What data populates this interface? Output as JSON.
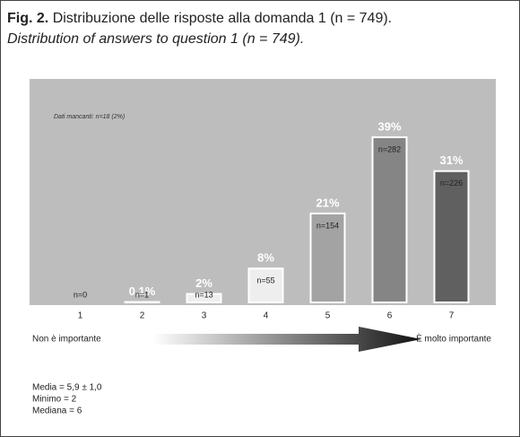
{
  "caption": {
    "label": "Fig. 2.",
    "text": "Distribuzione delle risposte alla domanda 1 (n = 749).",
    "english": "Distribution of answers to question 1 (n = 749)."
  },
  "chart_data": {
    "type": "bar",
    "annotation": "Dati mancanti: n=18 (2%)",
    "categories": [
      "1",
      "2",
      "3",
      "4",
      "5",
      "6",
      "7"
    ],
    "values": [
      0,
      0.1,
      2,
      8,
      21,
      39,
      31
    ],
    "value_labels": [
      null,
      "0,1%",
      "2%",
      "8%",
      "21%",
      "39%",
      "31%"
    ],
    "n_labels": [
      "n=0",
      "n=1",
      "n=13",
      "n=55",
      "n=154",
      "n=282",
      "n=226"
    ],
    "colors": [
      "#eeeeee",
      "#eeeeee",
      "#eeeeee",
      "#eeeeee",
      "#a3a3a3",
      "#858585",
      "#606060"
    ],
    "scale_left": "Non è importante",
    "scale_right": "È molto importante"
  },
  "stats": [
    "Media = 5,9 ± 1,0",
    "Minimo = 2",
    "Mediana = 6"
  ]
}
